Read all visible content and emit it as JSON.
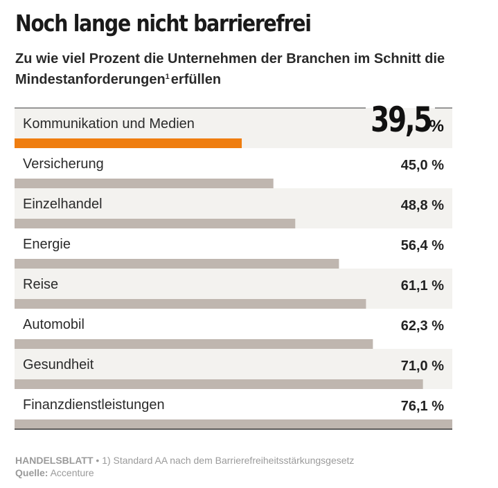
{
  "title": "Noch lange nicht barrierefrei",
  "subtitle_part1": "Zu wie viel Prozent die Unternehmen der Branchen im Schnitt die Mindestanforderungen",
  "subtitle_sup": "1",
  "subtitle_part2": "erfüllen",
  "footer": {
    "brand": "HANDELSBLATT",
    "separator": "•",
    "note": "1) Standard AA nach dem Barrierefreiheitsstärkungsgesetz",
    "source_label": "Quelle:",
    "source": "Accenture"
  },
  "colors": {
    "highlight": "#ef7d0f",
    "bar": "#bfb6af",
    "row_shade": "#f3f2ef",
    "text": "#222222"
  },
  "chart_data": {
    "type": "bar",
    "orientation": "horizontal",
    "categories": [
      "Kommunikation und Medien",
      "Versicherung",
      "Einzelhandel",
      "Energie",
      "Reise",
      "Automobil",
      "Gesundheit",
      "Finanzdienstleistungen"
    ],
    "values": [
      39.5,
      45.0,
      48.8,
      56.4,
      61.1,
      62.3,
      71.0,
      76.1
    ],
    "labels": [
      "39,5",
      "45,0 %",
      "48,8 %",
      "56,4 %",
      "61,1 %",
      "62,3 %",
      "71,0 %",
      "76,1 %"
    ],
    "highlight_unit": "%",
    "highlight_index": 0,
    "xlim": [
      0,
      76.1
    ]
  }
}
